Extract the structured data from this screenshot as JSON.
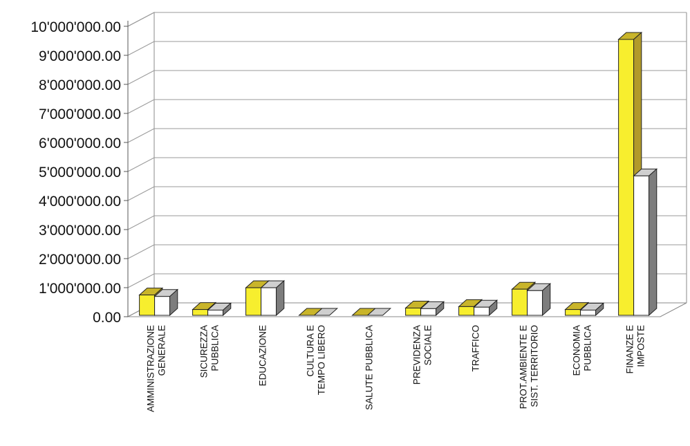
{
  "chart_data": {
    "type": "bar",
    "categories": [
      [
        "AMMINISTRAZIONE",
        "GENERALE"
      ],
      [
        "SICUREZZA",
        "PUBBLICA"
      ],
      [
        "EDUCAZIONE"
      ],
      [
        "CULTURA E",
        "TEMPO LIBERO"
      ],
      [
        "SALUTE PUBBLICA"
      ],
      [
        "PREVIDENZA",
        "SOCIALE"
      ],
      [
        "TRAFFICO"
      ],
      [
        "PROT.AMBIENTE E",
        "SIST. TERRITORIO"
      ],
      [
        "ECONOMIA",
        "PUBBLICA"
      ],
      [
        "FINANZE E",
        "IMPOSTE"
      ]
    ],
    "series": [
      {
        "values": [
          700000,
          200000,
          950000,
          0,
          0,
          250000,
          300000,
          900000,
          200000,
          9500000
        ],
        "color": "#f7ee2e"
      },
      {
        "values": [
          650000,
          180000,
          950000,
          0,
          0,
          230000,
          280000,
          850000,
          180000,
          4800000
        ],
        "color": "#ffffff"
      }
    ],
    "ylim": [
      0,
      10000000
    ],
    "yticks": [
      "0.00",
      "1'000'000.00",
      "2'000'000.00",
      "3'000'000.00",
      "4'000'000.00",
      "5'000'000.00",
      "6'000'000.00",
      "7'000'000.00",
      "8'000'000.00",
      "9'000'000.00",
      "10'000'000.00"
    ],
    "grid": true,
    "legend": "none",
    "title": "",
    "xlabel": "",
    "ylabel": ""
  }
}
